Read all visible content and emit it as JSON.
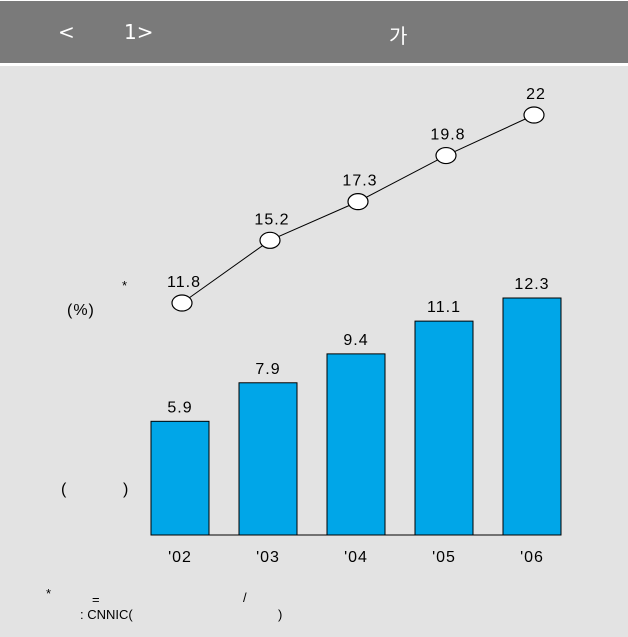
{
  "header": {
    "prev_symbol": "<",
    "page_marker": "1>",
    "title_char": "가"
  },
  "side_labels": {
    "line_asterisk": "*",
    "percent_label": "(%)",
    "bar_unit_open": "(",
    "bar_unit_close": ")"
  },
  "footnote": {
    "asterisk": "*",
    "equals": "=",
    "slash": "/",
    "source": ": CNNIC(",
    "source_close": ")"
  },
  "colors": {
    "header_bg": "#7a7a7a",
    "panel_bg": "#e3e3e3",
    "bar_fill": "#00a6e8",
    "bar_stroke": "#000000",
    "line_color": "#000000",
    "marker_fill": "#ffffff"
  },
  "chart_data": {
    "type": "bar",
    "categories": [
      "'02",
      "'03",
      "'04",
      "'05",
      "'06"
    ],
    "bar_values": [
      5.9,
      7.9,
      9.4,
      11.1,
      12.3
    ],
    "bar_labels": [
      "5.9",
      "7.9",
      "9.4",
      "11.1",
      "12.3"
    ],
    "line_values": [
      11.8,
      15.2,
      17.3,
      19.8,
      22
    ],
    "line_labels": [
      "11.8",
      "15.2",
      "17.3",
      "19.8",
      "22"
    ],
    "bar_ylim": [
      0,
      12.3
    ],
    "line_ylim": [
      11.8,
      22
    ],
    "line_marker": "ellipse",
    "grid": false,
    "legend": "none"
  }
}
